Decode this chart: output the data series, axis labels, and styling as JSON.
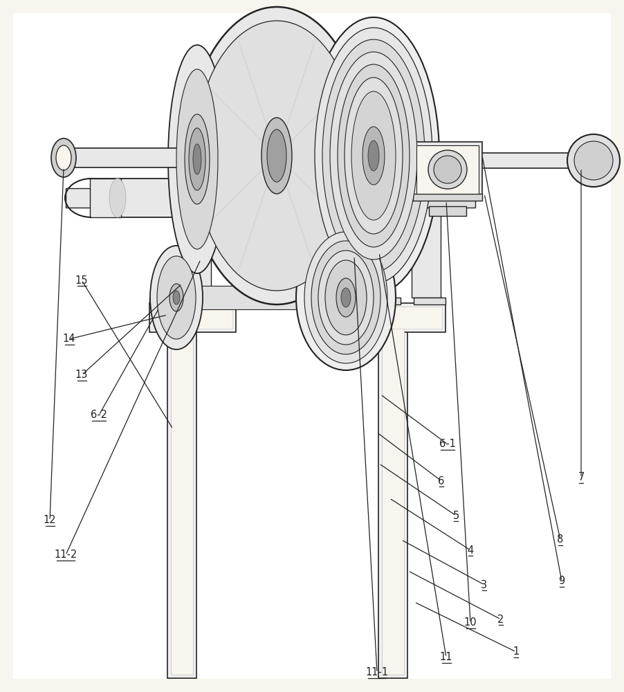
{
  "background_color": "#f8f5ef",
  "line_color": "#222222",
  "lw": 1.3,
  "fig_width": 9.02,
  "fig_height": 10.0
}
